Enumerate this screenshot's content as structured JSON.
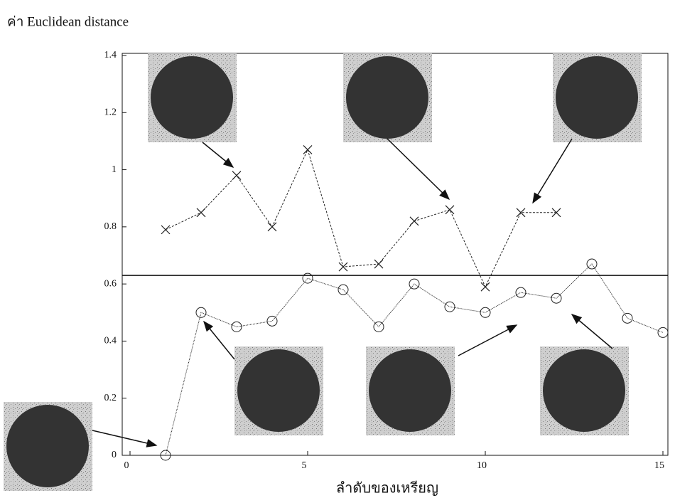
{
  "chart_data": {
    "type": "line",
    "title": "ค่า Euclidean distance",
    "x_label": "ลำดับของเหรียญ",
    "series": [
      {
        "name": null,
        "color": "#222222",
        "marker": "x",
        "x": [
          1,
          2,
          3,
          4,
          5,
          6,
          7,
          8,
          9,
          10,
          11,
          12
        ],
        "values": [
          0.79,
          0.85,
          0.98,
          0.8,
          1.07,
          0.66,
          0.67,
          0.82,
          0.86,
          0.59,
          0.85,
          0.85
        ]
      },
      {
        "name": null,
        "color": "#222222",
        "marker": "o",
        "x": [
          1,
          2,
          3,
          4,
          5,
          6,
          7,
          8,
          9,
          10,
          11,
          12,
          13,
          14,
          15
        ],
        "values": [
          0.0,
          0.5,
          0.45,
          0.47,
          0.62,
          0.58,
          0.45,
          0.6,
          0.52,
          0.5,
          0.57,
          0.55,
          0.67,
          0.48,
          0.43
        ]
      }
    ],
    "threshold": 0.63,
    "xlim": [
      0,
      15
    ],
    "xticks": [
      0,
      5,
      10,
      15
    ],
    "ylim": [
      0,
      1.4
    ],
    "yticks": [
      0,
      0.2,
      0.4,
      0.6,
      0.8,
      1,
      1.2,
      1.4
    ]
  }
}
